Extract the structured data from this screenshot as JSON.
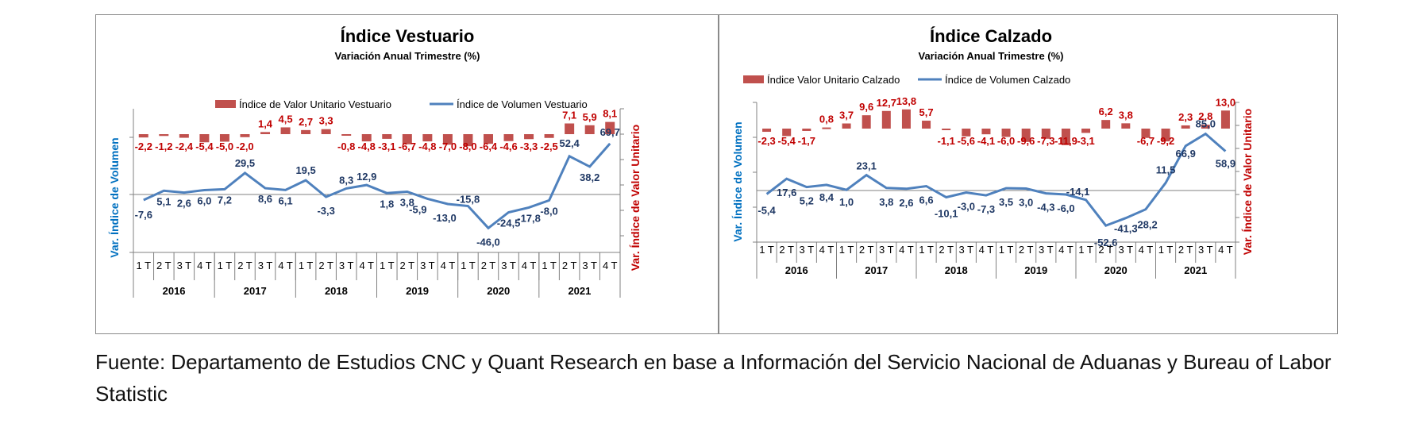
{
  "colors": {
    "bar": "#C0504D",
    "line": "#4F81BD",
    "value_label_bar": "#C00000",
    "value_label_line": "#1F3864",
    "axis_label_left": "#0070C0",
    "axis_label_right": "#C00000"
  },
  "source_text": "Fuente: Departamento de Estudios CNC y Quant Research en base a Información del Servicio Nacional de Aduanas y Bureau of Labor Statistic",
  "chart_data": [
    {
      "type": "bar+line",
      "title": "Índice Vestuario",
      "subtitle": "Variación Anual Trimestre  (%)",
      "ylabel_left": "Var. Índice de Volumen",
      "ylabel_right": "Var. Índice de Valor Unitario",
      "quarters": [
        "1 T",
        "2 T",
        "3 T",
        "4 T",
        "1 T",
        "2 T",
        "3 T",
        "4 T",
        "1 T",
        "2 T",
        "3 T",
        "4 T",
        "1 T",
        "2 T",
        "3 T",
        "4 T",
        "1 T",
        "2 T",
        "3 T",
        "4 T",
        "1 T",
        "2 T",
        "3 T",
        "4 T"
      ],
      "years": [
        "2016",
        "2017",
        "2018",
        "2019",
        "2020",
        "2021"
      ],
      "legend": "top-center",
      "series": [
        {
          "name": "Índice de Valor Unitario Vestuario",
          "kind": "bar",
          "axis": "right",
          "values": [
            -2.2,
            -1.2,
            -2.4,
            -5.4,
            -5.0,
            -2.0,
            1.4,
            4.5,
            2.7,
            3.3,
            -0.8,
            -4.8,
            -3.1,
            -6.7,
            -4.8,
            -7.0,
            -8.0,
            -6.4,
            -4.6,
            -3.3,
            -2.5,
            7.1,
            5.9,
            8.1
          ],
          "labels": [
            "-2,2",
            "-1,2",
            "-2,4",
            "-5,4",
            "-5,0",
            "-2,0",
            "1,4",
            "4,5",
            "2,7",
            "3,3",
            "-0,8",
            "-4,8",
            "-3,1",
            "-6,7",
            "-4,8",
            "-7,0",
            "-8,0",
            "-6,4",
            "-4,6",
            "-3,3",
            "-2,5",
            "7,1",
            "5,9",
            "8,1"
          ]
        },
        {
          "name": "Índice de Volumen Vestuario",
          "kind": "line",
          "axis": "left",
          "values": [
            -7.6,
            5.1,
            2.6,
            6.0,
            7.2,
            29.5,
            8.6,
            6.1,
            19.5,
            -3.3,
            8.3,
            12.9,
            1.8,
            3.8,
            -5.9,
            -13.0,
            -15.8,
            -46.0,
            -24.5,
            -17.8,
            -8.0,
            52.4,
            38.2,
            69.7
          ],
          "labels": [
            "-7,6",
            "5,1",
            "2,6",
            "6,0",
            "7,2",
            "29,5",
            "8,6",
            "6,1",
            "19,5",
            "-3,3",
            "8,3",
            "12,9",
            "1,8",
            "3,8",
            "-5,9",
            "-13,0",
            "-15,8",
            "-46,0",
            "-24,5",
            "-17,8",
            "-8,0",
            "52,4",
            "38,2",
            "69,7"
          ]
        }
      ]
    },
    {
      "type": "bar+line",
      "title": "Índice Calzado",
      "subtitle": "Variación Anual Trimestre  (%)",
      "ylabel_left": "Var. Índice de Volumen",
      "ylabel_right": "Var. Índice de Valor Unitario",
      "quarters": [
        "1 T",
        "2 T",
        "3 T",
        "4 T",
        "1 T",
        "2 T",
        "3 T",
        "4 T",
        "1 T",
        "2 T",
        "3 T",
        "4 T",
        "1 T",
        "2 T",
        "3 T",
        "4 T",
        "1 T",
        "2 T",
        "3 T",
        "4 T",
        "1 T",
        "2 T",
        "3 T",
        "4 T"
      ],
      "years": [
        "2016",
        "2017",
        "2018",
        "2019",
        "2020",
        "2021"
      ],
      "legend": "top-center",
      "series": [
        {
          "name": "Índice Valor Unitario Calzado",
          "kind": "bar",
          "axis": "right",
          "values": [
            -2.3,
            -5.4,
            -1.7,
            0.8,
            3.7,
            9.6,
            12.7,
            13.8,
            5.7,
            -1.1,
            -5.6,
            -4.1,
            -6.0,
            -9.6,
            -7.3,
            -11.9,
            -3.1,
            6.2,
            3.8,
            -6.7,
            -9.2,
            2.3,
            2.8,
            13.0
          ],
          "labels": [
            "-2,3",
            "-5,4",
            "-1,7",
            "0,8",
            "3,7",
            "9,6",
            "12,7",
            "13,8",
            "5,7",
            "-1,1",
            "-5,6",
            "-4,1",
            "-6,0",
            "-9,6",
            "-7,3",
            "-11,9",
            "-3,1",
            "6,2",
            "3,8",
            "-6,7",
            "-9,2",
            "2,3",
            "2,8",
            "13,0"
          ]
        },
        {
          "name": "Índice de Volumen Calzado",
          "kind": "line",
          "axis": "left",
          "values": [
            -5.4,
            17.6,
            5.2,
            8.4,
            1.0,
            23.1,
            3.8,
            2.6,
            6.6,
            -10.1,
            -3.0,
            -7.3,
            3.5,
            3.0,
            -4.3,
            -6.0,
            -14.1,
            -52.6,
            -41.3,
            -28.2,
            11.5,
            66.9,
            85.0,
            58.9
          ],
          "labels": [
            "-5,4",
            "17,6",
            "5,2",
            "8,4",
            "1,0",
            "23,1",
            "3,8",
            "2,6",
            "6,6",
            "-10,1",
            "-3,0",
            "-7,3",
            "3,5",
            "3,0",
            "-4,3",
            "-6,0",
            "-14,1",
            "-52,6",
            "-41,3",
            "-28,2",
            "11,5",
            "66,9",
            "85,0",
            "58,9"
          ]
        }
      ]
    }
  ]
}
